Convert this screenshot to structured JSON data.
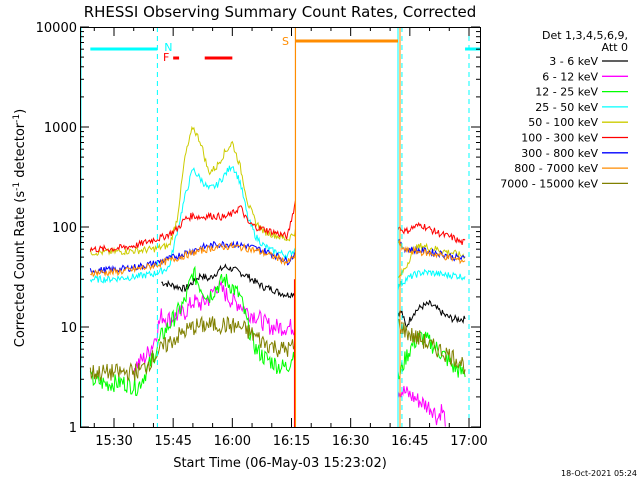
{
  "chart_data": {
    "type": "line",
    "title": "RHESSI Observing Summary Count Rates, Corrected",
    "xlabel": "Start Time (06-May-03 15:23:02)",
    "ylabel_main": "Corrected Count Rate (s",
    "ylabel_sup1": "-1",
    "ylabel_mid": " detector",
    "ylabel_sup2": "-1",
    "ylabel_end": ")",
    "x_unit": "minutes of day (UT)",
    "xlim": [
      924,
      1384
    ],
    "ylim": [
      1,
      10000
    ],
    "y_scale": "log",
    "x_ticks": [
      {
        "v": 930,
        "label": "15:30"
      },
      {
        "v": 945,
        "label": "15:45"
      },
      {
        "v": 960,
        "label": "16:00"
      },
      {
        "v": 975,
        "label": "16:15"
      },
      {
        "v": 990,
        "label": "16:30"
      },
      {
        "v": 1005,
        "label": "16:45"
      },
      {
        "v": 1020,
        "label": "17:00"
      }
    ],
    "y_ticks": [
      {
        "v": 1,
        "label": "1"
      },
      {
        "v": 10,
        "label": "10"
      },
      {
        "v": 100,
        "label": "100"
      },
      {
        "v": 1000,
        "label": "1000"
      },
      {
        "v": 10000,
        "label": "10000"
      }
    ],
    "legend_header": [
      "Det 1,3,4,5,6,9,",
      "Att 0"
    ],
    "legend_position": "right",
    "series": [
      {
        "name": "3 - 6 keV",
        "color": "#000000",
        "gap": [
          976,
          1002
        ],
        "points": [
          [
            941,
            null
          ],
          [
            942,
            28
          ],
          [
            945,
            26
          ],
          [
            948,
            24
          ],
          [
            950,
            28
          ],
          [
            952,
            33
          ],
          [
            954,
            30
          ],
          [
            956,
            35
          ],
          [
            958,
            40
          ],
          [
            960,
            38
          ],
          [
            962,
            35
          ],
          [
            964,
            32
          ],
          [
            966,
            28
          ],
          [
            968,
            25
          ],
          [
            970,
            24
          ],
          [
            972,
            22
          ],
          [
            974,
            21
          ],
          [
            976,
            22
          ],
          [
            1003,
            14
          ],
          [
            1004,
            10
          ],
          [
            1006,
            14
          ],
          [
            1008,
            16
          ],
          [
            1010,
            17
          ],
          [
            1012,
            15
          ],
          [
            1014,
            13
          ],
          [
            1016,
            12
          ],
          [
            1018,
            12
          ],
          [
            1019,
            12
          ]
        ]
      },
      {
        "name": "6 - 12 keV",
        "color": "#ff00ff",
        "gap": [
          976,
          1002
        ],
        "points": [
          [
            935,
            4
          ],
          [
            938,
            5
          ],
          [
            940,
            7
          ],
          [
            942,
            13
          ],
          [
            944,
            12
          ],
          [
            946,
            13
          ],
          [
            948,
            14
          ],
          [
            950,
            18
          ],
          [
            952,
            17
          ],
          [
            954,
            19
          ],
          [
            956,
            26
          ],
          [
            958,
            22
          ],
          [
            960,
            18
          ],
          [
            962,
            17
          ],
          [
            964,
            14
          ],
          [
            966,
            13
          ],
          [
            968,
            11
          ],
          [
            970,
            10
          ],
          [
            972,
            10
          ],
          [
            974,
            10
          ],
          [
            976,
            10
          ],
          [
            1011,
            1.5
          ],
          [
            1012,
            1.2
          ],
          [
            1013,
            1.5
          ],
          [
            1014,
            1.2
          ]
        ]
      },
      {
        "name": "12 - 25 keV",
        "color": "#00ff00",
        "gap": [
          976,
          1002
        ],
        "points": [
          [
            924,
            3
          ],
          [
            928,
            2.7
          ],
          [
            932,
            2.8
          ],
          [
            936,
            2.5
          ],
          [
            938,
            3.5
          ],
          [
            940,
            5
          ],
          [
            942,
            8
          ],
          [
            945,
            12
          ],
          [
            948,
            18
          ],
          [
            950,
            35
          ],
          [
            952,
            25
          ],
          [
            954,
            20
          ],
          [
            956,
            25
          ],
          [
            958,
            30
          ],
          [
            960,
            25
          ],
          [
            962,
            20
          ],
          [
            964,
            10
          ],
          [
            966,
            6
          ],
          [
            968,
            5
          ],
          [
            970,
            4.5
          ],
          [
            972,
            4
          ],
          [
            974,
            4
          ],
          [
            976,
            6
          ],
          [
            1002,
            3
          ],
          [
            1004,
            5
          ],
          [
            1006,
            7
          ],
          [
            1008,
            8
          ],
          [
            1010,
            7
          ],
          [
            1012,
            6
          ],
          [
            1014,
            5
          ],
          [
            1016,
            4
          ],
          [
            1018,
            3.5
          ],
          [
            1019,
            3.5
          ]
        ]
      },
      {
        "name": "25 - 50 keV",
        "color": "#00ffff",
        "gap": [
          976,
          1002
        ],
        "points": [
          [
            924,
            30
          ],
          [
            928,
            30
          ],
          [
            932,
            31
          ],
          [
            936,
            32
          ],
          [
            940,
            34
          ],
          [
            942,
            36
          ],
          [
            944,
            40
          ],
          [
            946,
            90
          ],
          [
            948,
            200
          ],
          [
            950,
            380
          ],
          [
            952,
            300
          ],
          [
            954,
            240
          ],
          [
            956,
            260
          ],
          [
            958,
            330
          ],
          [
            960,
            420
          ],
          [
            962,
            280
          ],
          [
            964,
            120
          ],
          [
            966,
            80
          ],
          [
            968,
            65
          ],
          [
            970,
            58
          ],
          [
            972,
            55
          ],
          [
            974,
            52
          ],
          [
            976,
            60
          ],
          [
            1002,
            25
          ],
          [
            1004,
            30
          ],
          [
            1006,
            33
          ],
          [
            1008,
            35
          ],
          [
            1010,
            35
          ],
          [
            1012,
            34
          ],
          [
            1014,
            33
          ],
          [
            1016,
            33
          ],
          [
            1018,
            32
          ],
          [
            1019,
            32
          ]
        ]
      },
      {
        "name": "50 - 100 keV",
        "color": "#cccc00",
        "gap": [
          976,
          1002
        ],
        "points": [
          [
            924,
            56
          ],
          [
            928,
            56
          ],
          [
            932,
            57
          ],
          [
            936,
            58
          ],
          [
            940,
            60
          ],
          [
            942,
            63
          ],
          [
            944,
            65
          ],
          [
            946,
            120
          ],
          [
            948,
            500
          ],
          [
            950,
            1000
          ],
          [
            952,
            700
          ],
          [
            954,
            350
          ],
          [
            956,
            400
          ],
          [
            958,
            550
          ],
          [
            960,
            700
          ],
          [
            962,
            400
          ],
          [
            964,
            170
          ],
          [
            966,
            110
          ],
          [
            968,
            90
          ],
          [
            970,
            85
          ],
          [
            972,
            80
          ],
          [
            974,
            75
          ],
          [
            976,
            90
          ],
          [
            1002,
            30
          ],
          [
            1004,
            40
          ],
          [
            1006,
            60
          ],
          [
            1008,
            65
          ],
          [
            1010,
            62
          ],
          [
            1012,
            60
          ],
          [
            1014,
            57
          ],
          [
            1016,
            55
          ],
          [
            1018,
            52
          ],
          [
            1019,
            52
          ]
        ]
      },
      {
        "name": "100 - 300 keV",
        "color": "#ff0000",
        "gap": [
          976,
          1002
        ],
        "points": [
          [
            924,
            60
          ],
          [
            928,
            60
          ],
          [
            932,
            62
          ],
          [
            936,
            66
          ],
          [
            940,
            75
          ],
          [
            942,
            78
          ],
          [
            944,
            85
          ],
          [
            946,
            95
          ],
          [
            948,
            120
          ],
          [
            950,
            130
          ],
          [
            952,
            125
          ],
          [
            954,
            130
          ],
          [
            956,
            128
          ],
          [
            958,
            125
          ],
          [
            960,
            135
          ],
          [
            962,
            160
          ],
          [
            964,
            110
          ],
          [
            966,
            100
          ],
          [
            968,
            95
          ],
          [
            970,
            90
          ],
          [
            972,
            85
          ],
          [
            974,
            80
          ],
          [
            976,
            180
          ],
          [
            1002,
            100
          ],
          [
            1004,
            90
          ],
          [
            1006,
            100
          ],
          [
            1008,
            105
          ],
          [
            1010,
            95
          ],
          [
            1012,
            88
          ],
          [
            1014,
            82
          ],
          [
            1016,
            78
          ],
          [
            1018,
            70
          ],
          [
            1019,
            70
          ]
        ]
      },
      {
        "name": "300 - 800 keV",
        "color": "#0000ff",
        "gap": [
          976,
          1002
        ],
        "points": [
          [
            924,
            37
          ],
          [
            928,
            37
          ],
          [
            932,
            38
          ],
          [
            936,
            40
          ],
          [
            940,
            43
          ],
          [
            944,
            48
          ],
          [
            948,
            55
          ],
          [
            952,
            62
          ],
          [
            956,
            67
          ],
          [
            960,
            68
          ],
          [
            964,
            64
          ],
          [
            968,
            58
          ],
          [
            972,
            50
          ],
          [
            974,
            45
          ],
          [
            976,
            55
          ],
          [
            1002,
            70
          ],
          [
            1004,
            60
          ],
          [
            1008,
            58
          ],
          [
            1012,
            55
          ],
          [
            1016,
            50
          ],
          [
            1019,
            48
          ]
        ]
      },
      {
        "name": "800 - 7000 keV",
        "color": "#ff8c00",
        "gap": [
          976,
          1002
        ],
        "points": [
          [
            924,
            35
          ],
          [
            928,
            35
          ],
          [
            932,
            36
          ],
          [
            936,
            38
          ],
          [
            940,
            41
          ],
          [
            944,
            46
          ],
          [
            948,
            52
          ],
          [
            952,
            58
          ],
          [
            956,
            63
          ],
          [
            960,
            64
          ],
          [
            964,
            61
          ],
          [
            968,
            55
          ],
          [
            972,
            48
          ],
          [
            974,
            44
          ],
          [
            976,
            52
          ],
          [
            1002,
            68
          ],
          [
            1004,
            58
          ],
          [
            1008,
            56
          ],
          [
            1012,
            53
          ],
          [
            1016,
            48
          ],
          [
            1019,
            46
          ]
        ]
      },
      {
        "name": "7000 - 15000 keV",
        "color": "#808000",
        "gap": [
          976,
          1002
        ],
        "points": [
          [
            924,
            3.5
          ],
          [
            928,
            3.5
          ],
          [
            932,
            3.5
          ],
          [
            936,
            3.6
          ],
          [
            938,
            4
          ],
          [
            940,
            5
          ],
          [
            942,
            6
          ],
          [
            944,
            7
          ],
          [
            946,
            8
          ],
          [
            948,
            9
          ],
          [
            950,
            10
          ],
          [
            954,
            10.5
          ],
          [
            958,
            10.5
          ],
          [
            962,
            10
          ],
          [
            964,
            9
          ],
          [
            966,
            8
          ],
          [
            968,
            7
          ],
          [
            970,
            6.5
          ],
          [
            972,
            6
          ],
          [
            974,
            6
          ],
          [
            976,
            6.5
          ],
          [
            1002,
            11
          ],
          [
            1004,
            9
          ],
          [
            1006,
            8
          ],
          [
            1008,
            7.5
          ],
          [
            1010,
            6.5
          ],
          [
            1012,
            6
          ],
          [
            1014,
            5.5
          ],
          [
            1016,
            5
          ],
          [
            1018,
            4.5
          ],
          [
            1019,
            4
          ]
        ]
      }
    ],
    "annotations": {
      "flags": [
        {
          "label": "N",
          "color": "#00ffff",
          "x": 942
        },
        {
          "label": "F",
          "color": "#ff0000",
          "x": 945
        },
        {
          "label": "S",
          "color": "#ff8c00",
          "x": 976
        }
      ],
      "night_bars": [
        [
          924,
          941
        ],
        [
          1019,
          1028
        ]
      ],
      "flare_bars": [
        [
          945,
          946.5
        ],
        [
          953,
          960
        ]
      ],
      "saa_bar": [
        976,
        1002
      ],
      "vlines_dashed": [
        941,
        1003,
        1020
      ],
      "vline_saa": 976
    }
  },
  "timestamp": "18-Oct-2021 05:24"
}
